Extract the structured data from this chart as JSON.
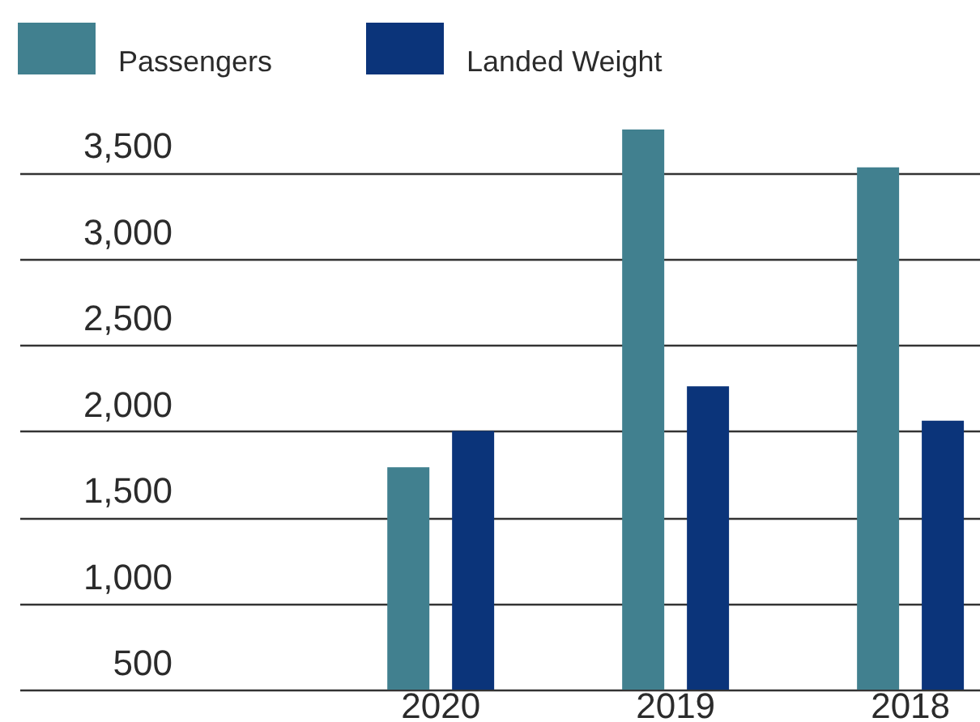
{
  "chart_data": {
    "type": "bar",
    "categories": [
      "2020",
      "2019",
      "2018"
    ],
    "series": [
      {
        "name": "Passengers",
        "color": "#41808f",
        "values": [
          1790,
          3750,
          3530
        ]
      },
      {
        "name": "Landed Weight",
        "color": "#0b347a",
        "values": [
          2000,
          2260,
          2060
        ]
      }
    ],
    "ylim": [
      500,
      3750
    ],
    "yticks": [
      500,
      {
        "value": 1000,
        "label": "1,000"
      },
      {
        "value": 1500,
        "label": "1,500"
      },
      {
        "value": 2000,
        "label": "2,000"
      },
      {
        "value": 2500,
        "label": "2,500"
      },
      {
        "value": 3000,
        "label": "3,000"
      },
      {
        "value": 3500,
        "label": "3,500"
      }
    ],
    "grid": "y",
    "legend": "top left"
  }
}
